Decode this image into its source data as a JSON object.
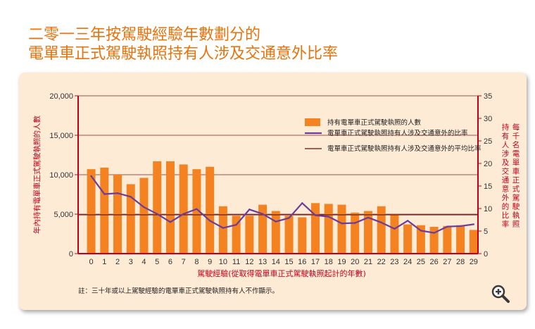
{
  "title_line1": "二零一三年按駕駛經驗年數劃分的",
  "title_line2": "電單車正式駕駛執照持有人涉及交通意外比率",
  "footnote": "註：三十年或以上駕駛經驗的電單車正式駕駛執照持有人不作顯示。",
  "zoom_icon": "magnifier-plus-icon",
  "colors": {
    "title": "#e8730c",
    "bar": "#f58220",
    "line": "#6a3d9a",
    "avg": "#8b1a1a",
    "axis": "#c0001a",
    "panel": "#fdebd6"
  },
  "chart_data": {
    "type": "bar",
    "xlabel": "駕駛經驗(從取得電單車正式駕駛執照起計的年數)",
    "ylabel_left": "年內持有電單車正式駕駛執照的人數",
    "ylabel_right": "每千名電單車正式駕駛執照持有人涉及交通意外的比率",
    "categories": [
      "0",
      "1",
      "2",
      "3",
      "4",
      "5",
      "6",
      "7",
      "8",
      "9",
      "10",
      "11",
      "12",
      "13",
      "14",
      "15",
      "16",
      "17",
      "18",
      "19",
      "20",
      "21",
      "22",
      "23",
      "24",
      "25",
      "26",
      "27",
      "28",
      "29"
    ],
    "ylim_left": [
      0,
      20000
    ],
    "yticks_left": [
      "0",
      "5,000",
      "10,000",
      "15,000",
      "20,000"
    ],
    "yticks_left_values": [
      0,
      5000,
      10000,
      15000,
      20000
    ],
    "ylim_right": [
      0,
      35
    ],
    "yticks_right": [
      "0",
      "5",
      "10",
      "15",
      "20",
      "25",
      "30",
      "35"
    ],
    "yticks_right_values": [
      0,
      5,
      10,
      15,
      20,
      25,
      30,
      35
    ],
    "series": [
      {
        "name": "持有電單車正式駕駛執照的人數",
        "type": "bar",
        "axis": "left",
        "values": [
          10700,
          10900,
          10000,
          8800,
          9600,
          11700,
          11700,
          11300,
          10700,
          11000,
          6000,
          4800,
          4800,
          6200,
          5400,
          4800,
          4600,
          6400,
          6300,
          6200,
          5200,
          5400,
          6000,
          5000,
          3700,
          3600,
          3400,
          3500,
          3600,
          3000
        ]
      },
      {
        "name": "電單車正式駕駛執照持有人涉及交通意外的比率",
        "type": "line",
        "axis": "right",
        "values": [
          17.2,
          13.2,
          13.4,
          12.6,
          10.3,
          8.8,
          7.0,
          8.8,
          9.9,
          7.3,
          5.7,
          6.4,
          9.8,
          8.8,
          7.1,
          7.9,
          11.2,
          8.5,
          8.2,
          6.7,
          6.8,
          8.0,
          6.9,
          5.5,
          7.3,
          5.1,
          4.6,
          6.0,
          6.1,
          6.5
        ]
      },
      {
        "name": "電單車正式駕駛執照持有人涉及交通意外的平均比率",
        "type": "hline",
        "axis": "right",
        "value": 8.6
      }
    ],
    "legend_position": "top-right",
    "grid": true
  }
}
